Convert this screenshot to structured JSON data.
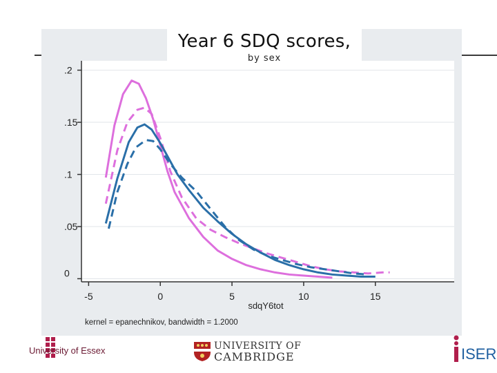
{
  "header": {
    "title": "Year 6 SDQ scores,",
    "subtitle": "by sex"
  },
  "footer": {
    "essex_label": "University of Essex",
    "cambridge_line1": "UNIVERSITY OF",
    "cambridge_line2": "CAMBRIDGE",
    "iser_label": "ISER"
  },
  "colors": {
    "pink": "#dd6fdd",
    "blue": "#2a6fa8",
    "panel": "#e9ecef",
    "essex": "#b01e4c",
    "cambridge": "#b22222",
    "iser": "#1f5fa0"
  },
  "chart_data": {
    "type": "line",
    "title": "Year 6 SDQ scores,",
    "subtitle": "by sex",
    "xlabel": "sdqY6tot",
    "ylabel": "",
    "note": "kernel = epanechnikov, bandwidth = 1.2000",
    "xlim": [
      -5.5,
      20.5
    ],
    "ylim": [
      -0.003,
      0.209
    ],
    "xticks": [
      -5,
      0,
      5,
      10,
      15
    ],
    "xtick_labels": [
      "-5",
      "0",
      "5",
      "10",
      "15"
    ],
    "yticks": [
      0,
      0.05,
      0.1,
      0.15,
      0.2
    ],
    "ytick_labels": [
      "0",
      ".05",
      ".1",
      ".15",
      ".2"
    ],
    "grid": true,
    "series": [
      {
        "name": "pink-solid",
        "color": "pink",
        "dash": "solid",
        "x": [
          -3.8,
          -3.2,
          -2.6,
          -2.0,
          -1.5,
          -1.0,
          -0.5,
          0,
          0.5,
          1,
          2,
          3,
          4,
          5,
          6,
          7,
          8,
          9,
          10,
          11,
          12
        ],
        "y": [
          0.097,
          0.147,
          0.177,
          0.19,
          0.187,
          0.173,
          0.153,
          0.128,
          0.103,
          0.083,
          0.058,
          0.04,
          0.027,
          0.019,
          0.013,
          0.009,
          0.006,
          0.004,
          0.003,
          0.002,
          0.001
        ]
      },
      {
        "name": "pink-dashed",
        "color": "pink",
        "dash": "dashed",
        "x": [
          -3.8,
          -3.0,
          -2.3,
          -1.6,
          -1.1,
          -0.6,
          0,
          0.7,
          1.5,
          2.5,
          3.5,
          4.5,
          5.5,
          6.5,
          7.5,
          8.5,
          9.5,
          10.5,
          11.5,
          12.5,
          13.5,
          14.5,
          15.5,
          16
        ],
        "y": [
          0.072,
          0.123,
          0.15,
          0.162,
          0.164,
          0.158,
          0.135,
          0.103,
          0.078,
          0.058,
          0.047,
          0.04,
          0.034,
          0.029,
          0.024,
          0.02,
          0.016,
          0.012,
          0.009,
          0.007,
          0.006,
          0.005,
          0.006,
          0.006
        ]
      },
      {
        "name": "blue-solid",
        "color": "blue",
        "dash": "solid",
        "x": [
          -3.8,
          -3.0,
          -2.2,
          -1.6,
          -1.1,
          -0.6,
          0,
          0.6,
          1.2,
          2,
          3,
          4,
          5,
          6,
          7,
          8,
          9,
          10,
          11,
          12,
          13,
          14,
          15
        ],
        "y": [
          0.053,
          0.096,
          0.131,
          0.145,
          0.148,
          0.143,
          0.13,
          0.115,
          0.1,
          0.085,
          0.068,
          0.055,
          0.043,
          0.033,
          0.025,
          0.018,
          0.013,
          0.009,
          0.006,
          0.004,
          0.003,
          0.002,
          0.002
        ]
      },
      {
        "name": "blue-dashed",
        "color": "blue",
        "dash": "dashed",
        "x": [
          -3.6,
          -3.0,
          -2.3,
          -1.7,
          -1.0,
          -0.5,
          0,
          0.7,
          1.5,
          2.5,
          3.5,
          4.5,
          5.5,
          6.5,
          7.5,
          8.5,
          9.5,
          10.5,
          11.5,
          12.5,
          13.5,
          14.5
        ],
        "y": [
          0.048,
          0.083,
          0.11,
          0.126,
          0.133,
          0.132,
          0.124,
          0.11,
          0.097,
          0.084,
          0.067,
          0.05,
          0.037,
          0.028,
          0.022,
          0.018,
          0.014,
          0.011,
          0.009,
          0.007,
          0.005,
          0.004
        ]
      }
    ]
  }
}
